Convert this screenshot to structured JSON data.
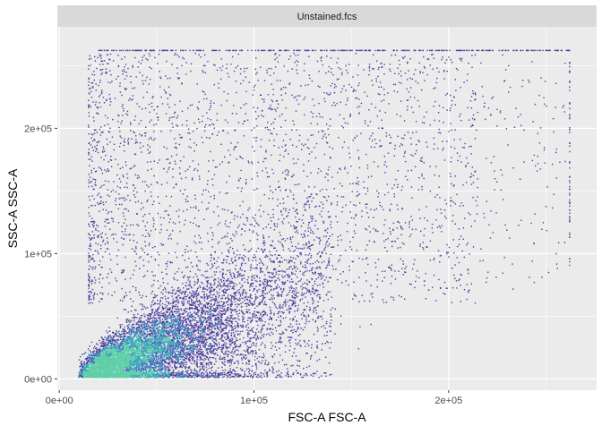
{
  "chart_data": {
    "type": "scatter",
    "panel_title": "Unstained.fcs",
    "xlabel": "FSC-A FSC-A",
    "ylabel": "SSC-A SSC-A",
    "xlim": [
      -1000,
      276000
    ],
    "ylim": [
      -9000,
      281000
    ],
    "x_ticks": [
      0,
      100000,
      200000
    ],
    "x_tick_labels": [
      "0e+00",
      "1e+05",
      "2e+05"
    ],
    "y_ticks": [
      0,
      100000,
      200000
    ],
    "y_tick_labels": [
      "0e+00",
      "1e+05",
      "2e+05"
    ],
    "grid": true,
    "point_color": "#4b3f9c",
    "density_colors": [
      "#4b3f9c",
      "#3f73b6",
      "#3aa7b8",
      "#5fcfa8"
    ],
    "panel_background": "#ebebeb",
    "strip_background": "#d9d9d9",
    "grid_color": "#ffffff",
    "saturation_value_x": 262143,
    "saturation_value_y": 262143,
    "population": {
      "x_range": [
        10000,
        262143
      ],
      "y_range": [
        1000,
        262143
      ],
      "dense_core_x": [
        10000,
        60000
      ],
      "dense_core_y": [
        1000,
        40000
      ],
      "approx_events": 30000
    }
  }
}
